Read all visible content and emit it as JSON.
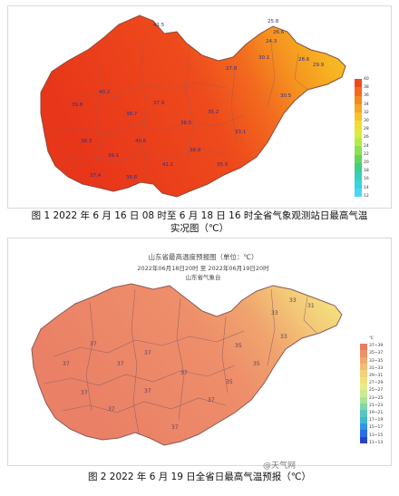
{
  "figure1": {
    "caption_line1": "图 1 2022 年 6 月 16 日 08 时至 6 月 18 日 16 时全省气象观测站日最高气温",
    "caption_line2": "实况图（℃）",
    "legend_colors": [
      "#f04a1c",
      "#f36a1e",
      "#f6881f",
      "#f8a624",
      "#f7c32b",
      "#f1dc36",
      "#ddeb3c",
      "#b8ea45",
      "#8fe050",
      "#62d55e",
      "#3fcf82",
      "#35d0b5",
      "#38d3e0",
      "#4bd6f4"
    ],
    "legend_labels": [
      "40",
      "38",
      "36",
      "34",
      "32",
      "30",
      "28",
      "26",
      "24",
      "22",
      "20",
      "18",
      "16",
      "14",
      "12"
    ],
    "station_values": [
      "25.8",
      "26.6",
      "24.3",
      "30.1",
      "27.8",
      "41.5",
      "28.6",
      "29.9",
      "30.5",
      "39.8",
      "40.2",
      "38.7",
      "37.9",
      "36.5",
      "35.2",
      "33.1",
      "38.3",
      "39.1",
      "40.6",
      "41.1",
      "38.9",
      "37.4",
      "36.8",
      "35.9"
    ]
  },
  "figure2": {
    "map_title": "山东省最高温度预报图（单位：℃）",
    "map_subtitle": "2022年06月18日20时 至 2022年06月19日20时",
    "map_issuer": "山东省气象台",
    "legend_colors": [
      "#e87b62",
      "#ec9368",
      "#f0a96f",
      "#f2be74",
      "#f3d27a",
      "#f2e27e",
      "#e8ec86",
      "#cde98f",
      "#a9e29a",
      "#7fd6a8",
      "#58c8bd",
      "#3fb8d6",
      "#3195e6",
      "#2a6ce2",
      "#2844c6"
    ],
    "legend_labels": [
      "℃",
      "37~39",
      "35~37",
      "33~35",
      "31~33",
      "29~31",
      "27~29",
      "25~27",
      "23~25",
      "21~23",
      "19~21",
      "17~19",
      "15~17",
      "13~15",
      "11~13"
    ],
    "city_values": [
      "37",
      "37",
      "37",
      "37",
      "37",
      "37",
      "37",
      "37",
      "35",
      "33",
      "31",
      "33",
      "35",
      "37",
      "37",
      "35",
      "33"
    ],
    "caption": "图 2 2022 年 6 月 19 日全省日最高气温预报（℃）"
  },
  "watermark": "@天气网"
}
